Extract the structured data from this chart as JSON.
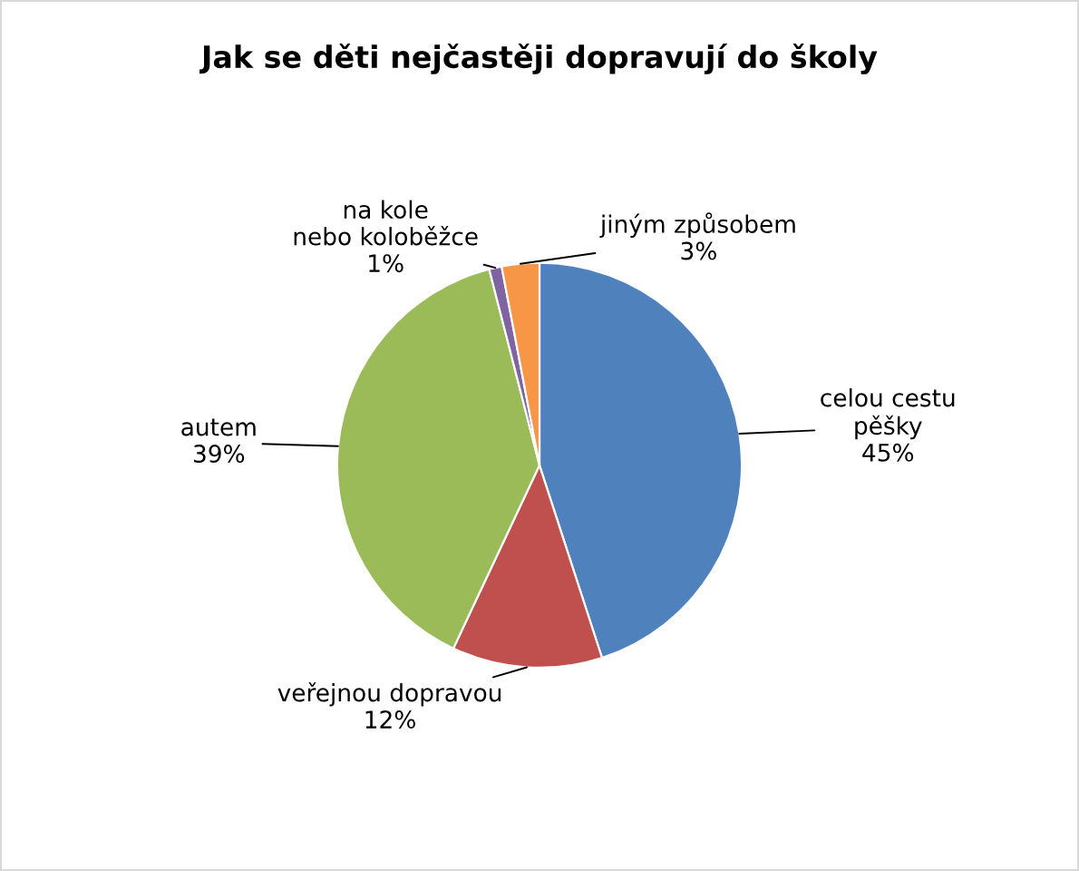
{
  "chart_data": {
    "type": "pie",
    "title": "Jak se děti nejčastěji dopravují do školy",
    "categories": [
      "celou cestu pěšky",
      "veřejnou dopravou",
      "autem",
      "na kole nebo koloběžce",
      "jiným způsobem"
    ],
    "values": [
      45,
      12,
      39,
      1,
      3
    ],
    "value_labels": [
      "45%",
      "12%",
      "39%",
      "1%",
      "3%"
    ],
    "colors": [
      "#4f81bd",
      "#c0504d",
      "#9bbb59",
      "#8064a2",
      "#f79646"
    ],
    "legend": false
  }
}
